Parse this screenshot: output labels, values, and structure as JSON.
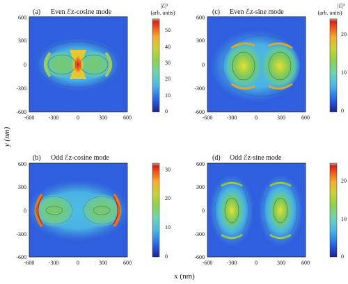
{
  "figure": {
    "xlabel": "x (nm)",
    "ylabel": "y (nm)"
  },
  "chart_data": [
    {
      "type": "heatmap",
      "label": "(a)",
      "title": "Even ℰz-cosine mode",
      "colorbar_label": "|ℰ|²",
      "colorbar_units": "(arb. units)",
      "xlim": [
        -600,
        600
      ],
      "ylim": [
        -600,
        600
      ],
      "x_ticks": [
        "-600",
        "-300",
        "0",
        "300",
        "600"
      ],
      "y_ticks": [
        "600",
        "300",
        "0",
        "-300",
        "-600"
      ],
      "colorbar_range": [
        0,
        57
      ],
      "colorbar_ticks": [
        "50",
        "40",
        "30",
        "20",
        "10",
        "0"
      ],
      "intensity_features": [
        {
          "kind": "lobe",
          "x": -200,
          "y": 0,
          "rx": 210,
          "ry": 150,
          "value": 18
        },
        {
          "kind": "lobe",
          "x": 200,
          "y": 0,
          "rx": 210,
          "ry": 150,
          "value": 18
        },
        {
          "kind": "crescent",
          "x": -300,
          "y": 0,
          "value": 24
        },
        {
          "kind": "crescent",
          "x": 300,
          "y": 0,
          "value": 24
        },
        {
          "kind": "gap-hotspot",
          "x": 0,
          "y": 0,
          "value": 55
        }
      ]
    },
    {
      "type": "heatmap",
      "label": "(c)",
      "title": "Even ℰz-sine mode",
      "colorbar_label": "|ℰ|²",
      "colorbar_units": "(arb. units)",
      "xlim": [
        -600,
        600
      ],
      "ylim": [
        -600,
        600
      ],
      "x_ticks": [
        "-600",
        "-300",
        "0",
        "300",
        "600"
      ],
      "y_ticks": [
        "600",
        "300",
        "0",
        "-300",
        "-600"
      ],
      "colorbar_range": [
        0,
        28
      ],
      "colorbar_ticks": [
        "20",
        "10",
        "0"
      ],
      "intensity_features": [
        {
          "kind": "lobe",
          "x": -220,
          "y": 0,
          "rx": 180,
          "ry": 230,
          "value": 24
        },
        {
          "kind": "lobe",
          "x": 220,
          "y": 0,
          "rx": 180,
          "ry": 230,
          "value": 24
        },
        {
          "kind": "crescent-top",
          "x": -220,
          "y": 230,
          "value": 26
        },
        {
          "kind": "crescent-top",
          "x": 220,
          "y": 230,
          "value": 26
        },
        {
          "kind": "crescent-bottom",
          "x": -220,
          "y": -230,
          "value": 26
        },
        {
          "kind": "crescent-bottom",
          "x": 220,
          "y": -230,
          "value": 26
        }
      ]
    },
    {
      "type": "heatmap",
      "label": "(b)",
      "title": "Odd ℰz-cosine mode",
      "colorbar_label": "",
      "colorbar_units": "",
      "xlim": [
        -600,
        600
      ],
      "ylim": [
        -600,
        600
      ],
      "x_ticks": [
        "-600",
        "-300",
        "0",
        "300",
        "600"
      ],
      "y_ticks": [
        "600",
        "300",
        "0",
        "-300",
        "-600"
      ],
      "colorbar_range": [
        0,
        32
      ],
      "colorbar_ticks": [
        "30",
        "20",
        "10",
        "0"
      ],
      "intensity_features": [
        {
          "kind": "lobe",
          "x": -290,
          "y": 0,
          "rx": 200,
          "ry": 180,
          "value": 18
        },
        {
          "kind": "lobe",
          "x": 290,
          "y": 0,
          "rx": 200,
          "ry": 180,
          "value": 18
        },
        {
          "kind": "crescent",
          "x": -420,
          "y": 0,
          "value": 30
        },
        {
          "kind": "crescent",
          "x": 420,
          "y": 0,
          "value": 30
        }
      ]
    },
    {
      "type": "heatmap",
      "label": "(d)",
      "title": "Odd ℰz-sine mode",
      "colorbar_label": "",
      "colorbar_units": "",
      "xlim": [
        -600,
        600
      ],
      "ylim": [
        -600,
        600
      ],
      "x_ticks": [
        "-600",
        "-300",
        "0",
        "300",
        "600"
      ],
      "y_ticks": [
        "600",
        "300",
        "0",
        "-300",
        "-600"
      ],
      "colorbar_range": [
        0,
        24
      ],
      "colorbar_ticks": [
        "20",
        "10",
        "0"
      ],
      "intensity_features": [
        {
          "kind": "lobe",
          "x": -300,
          "y": 0,
          "rx": 150,
          "ry": 240,
          "value": 22
        },
        {
          "kind": "lobe",
          "x": 300,
          "y": 0,
          "rx": 150,
          "ry": 240,
          "value": 22
        },
        {
          "kind": "crescent-top",
          "x": -300,
          "y": 250,
          "value": 20
        },
        {
          "kind": "crescent-top",
          "x": 300,
          "y": 250,
          "value": 20
        },
        {
          "kind": "crescent-bottom",
          "x": -300,
          "y": -250,
          "value": 20
        },
        {
          "kind": "crescent-bottom",
          "x": 300,
          "y": -250,
          "value": 20
        }
      ]
    }
  ]
}
